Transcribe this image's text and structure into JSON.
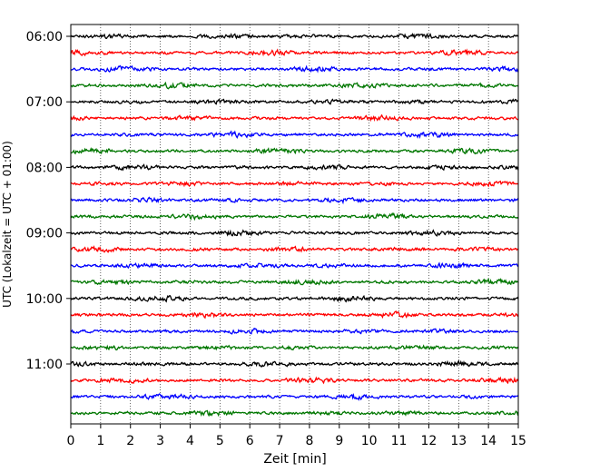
{
  "chart_data": {
    "type": "line",
    "xlabel": "Zeit  [min]",
    "ylabel": "UTC (Lokalzeit = UTC + 01:00)",
    "xlim": [
      0,
      15
    ],
    "x_ticks": [
      "0",
      "1",
      "2",
      "3",
      "4",
      "5",
      "6",
      "7",
      "8",
      "9",
      "10",
      "11",
      "12",
      "13",
      "14",
      "15"
    ],
    "y_tick_labels": [
      "06:00",
      "07:00",
      "08:00",
      "09:00",
      "10:00",
      "11:00"
    ],
    "grid": "vertical-dotted",
    "trace_interval_minutes": 15,
    "trace_colors": [
      "#000000",
      "#ff0000",
      "#0000ff",
      "#007700"
    ],
    "series": [
      {
        "start": "06:00",
        "color": "#000000"
      },
      {
        "start": "06:15",
        "color": "#ff0000"
      },
      {
        "start": "06:30",
        "color": "#0000ff"
      },
      {
        "start": "06:45",
        "color": "#007700"
      },
      {
        "start": "07:00",
        "color": "#000000"
      },
      {
        "start": "07:15",
        "color": "#ff0000"
      },
      {
        "start": "07:30",
        "color": "#0000ff"
      },
      {
        "start": "07:45",
        "color": "#007700"
      },
      {
        "start": "08:00",
        "color": "#000000"
      },
      {
        "start": "08:15",
        "color": "#ff0000"
      },
      {
        "start": "08:30",
        "color": "#0000ff"
      },
      {
        "start": "08:45",
        "color": "#007700"
      },
      {
        "start": "09:00",
        "color": "#000000"
      },
      {
        "start": "09:15",
        "color": "#ff0000"
      },
      {
        "start": "09:30",
        "color": "#0000ff"
      },
      {
        "start": "09:45",
        "color": "#007700"
      },
      {
        "start": "10:00",
        "color": "#000000"
      },
      {
        "start": "10:15",
        "color": "#ff0000"
      },
      {
        "start": "10:30",
        "color": "#0000ff"
      },
      {
        "start": "10:45",
        "color": "#007700"
      },
      {
        "start": "11:00",
        "color": "#000000"
      },
      {
        "start": "11:15",
        "color": "#ff0000"
      },
      {
        "start": "11:30",
        "color": "#0000ff"
      },
      {
        "start": "11:45",
        "color": "#007700"
      }
    ]
  }
}
